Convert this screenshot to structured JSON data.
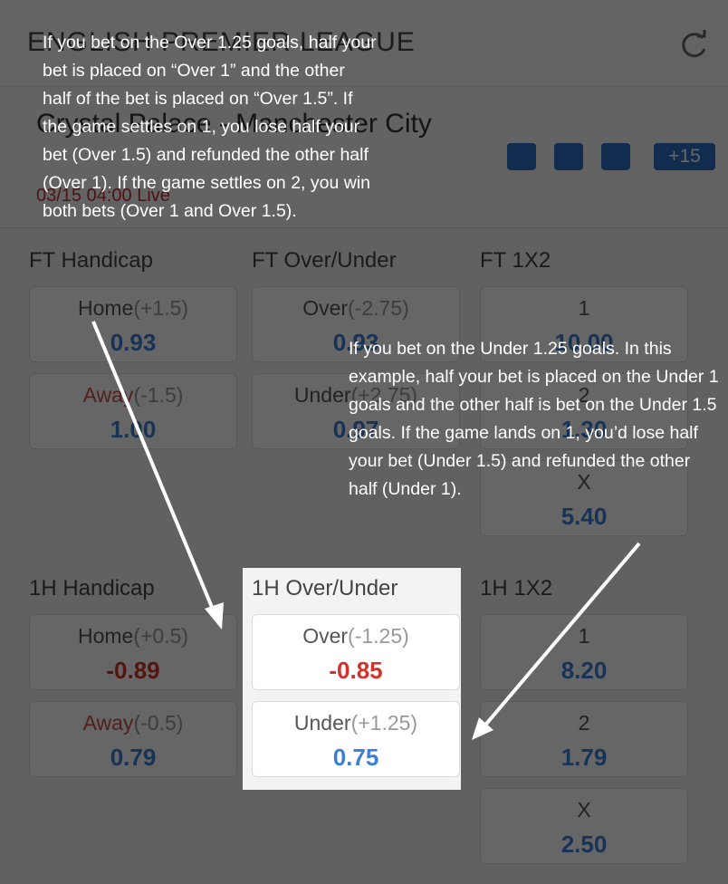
{
  "header": {
    "league": "ENGLISH PREMIER LEAGUE",
    "home_team": "Crystal Palace",
    "away_team": "Manchester City",
    "time": "03/15 04:00",
    "status": "Live",
    "more": "+15"
  },
  "markets": [
    {
      "title": "FT Handicap",
      "options": [
        {
          "label": "Home",
          "line": "(+1.5)",
          "odds": "0.93"
        },
        {
          "label": "Away",
          "line": "(-1.5)",
          "odds": "1.00",
          "label_color": "#c8504a"
        }
      ]
    },
    {
      "title": "FT Over/Under",
      "options": [
        {
          "label": "Over",
          "line": "(-2.75)",
          "odds": "0.93"
        },
        {
          "label": "Under",
          "line": "(+2.75)",
          "odds": "0.97"
        }
      ]
    },
    {
      "title": "FT 1X2",
      "options": [
        {
          "label": "1",
          "odds": "10.00"
        },
        {
          "label": "2",
          "odds": "1.30"
        },
        {
          "label": "X",
          "odds": "5.40"
        }
      ]
    },
    {
      "title": "1H Handicap",
      "options": [
        {
          "label": "Home",
          "line": "(+0.5)",
          "odds": "-0.89"
        },
        {
          "label": "Away",
          "line": "(-0.5)",
          "odds": "0.79",
          "label_color": "#c8504a"
        }
      ]
    },
    {
      "title": "1H Over/Under",
      "options": [
        {
          "label": "Over",
          "line": "(-1.25)",
          "odds": "-0.85"
        },
        {
          "label": "Under",
          "line": "(+1.25)",
          "odds": "0.75"
        }
      ]
    },
    {
      "title": "1H 1X2",
      "options": [
        {
          "label": "1",
          "odds": "8.20"
        },
        {
          "label": "2",
          "odds": "1.79"
        },
        {
          "label": "X",
          "odds": "2.50"
        }
      ]
    }
  ],
  "annotations": [
    "If you bet on the Over 1.25 goals, half your bet is placed on “Over 1” and the other half of the bet is placed on “Over 1.5”. If the game settles on 1, you lose half your bet (Over 1.5) and refunded the other half (Over 1). If the game settles on 2, you win both bets (Over 1 and Over 1.5).",
    "If you bet on the Under 1.25 goals. In this example, half your bet is placed on the Under 1 goals and the other half is bet on the Under 1.5 goals. If the game lands on 1, you’d lose half your bet (Under 1.5) and refunded the other half (Under 1)."
  ]
}
